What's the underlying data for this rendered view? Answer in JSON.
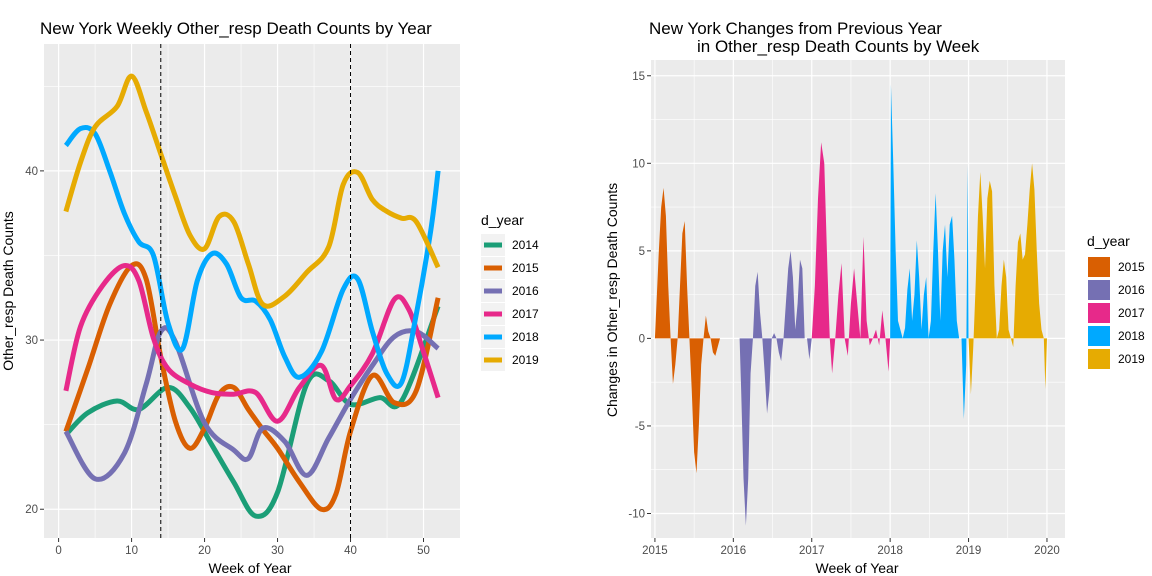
{
  "colors": {
    "2014": "#1B9E77",
    "2015": "#D95F02",
    "2016": "#7570B3",
    "2017": "#E7298A",
    "2018": "#00A9FF",
    "2019": "#E6AB02"
  },
  "chart_data": [
    {
      "type": "line",
      "title": "New York Weekly Other_resp Death Counts by Year",
      "xlabel": "Week of Year",
      "ylabel": "Other_resp Death Counts",
      "xlim": [
        -2,
        55
      ],
      "ylim": [
        18.3,
        47.5
      ],
      "x_ticks": [
        0,
        10,
        20,
        30,
        40,
        50
      ],
      "y_ticks": [
        20,
        30,
        40
      ],
      "vlines": [
        14,
        40
      ],
      "legend": {
        "title": "d_year",
        "position": "right",
        "entries": [
          "2014",
          "2015",
          "2016",
          "2017",
          "2018",
          "2019"
        ]
      },
      "grid": true,
      "series": [
        {
          "name": "2014",
          "x": [
            1,
            4,
            8,
            11,
            15,
            18,
            21,
            24,
            27,
            30,
            34,
            37,
            40,
            44,
            47,
            52
          ],
          "values": [
            24.4,
            25.7,
            26.4,
            25.9,
            27.2,
            26.0,
            23.8,
            21.6,
            19.6,
            21.0,
            27.4,
            27.6,
            26.2,
            26.6,
            26.4,
            32.0
          ]
        },
        {
          "name": "2015",
          "x": [
            1,
            4,
            7,
            10,
            12,
            14,
            16,
            18,
            20,
            22,
            24,
            26,
            28,
            30,
            33,
            36,
            38,
            40,
            43,
            46,
            49,
            52
          ],
          "values": [
            24.6,
            28.3,
            32.1,
            34.4,
            33.6,
            29.0,
            25.2,
            23.6,
            24.8,
            26.8,
            27.2,
            25.9,
            24.7,
            23.6,
            21.6,
            20.0,
            20.9,
            24.6,
            27.9,
            26.3,
            27.0,
            32.5
          ]
        },
        {
          "name": "2016",
          "x": [
            1,
            5,
            9,
            12,
            14,
            16,
            20,
            24,
            26,
            28,
            31,
            34,
            37,
            40,
            43,
            46,
            49,
            52
          ],
          "values": [
            24.6,
            21.8,
            23.3,
            27.4,
            30.5,
            29.9,
            25.1,
            23.5,
            23.0,
            24.8,
            24.0,
            22.0,
            24.2,
            26.5,
            28.5,
            30.2,
            30.5,
            29.5
          ]
        },
        {
          "name": "2017",
          "x": [
            1,
            3,
            6,
            9,
            11,
            13,
            15,
            18,
            21,
            24,
            27,
            30,
            33,
            36,
            38,
            40,
            43,
            46,
            48,
            50,
            52
          ],
          "values": [
            27.0,
            30.8,
            33.2,
            34.4,
            33.5,
            30.1,
            28.3,
            27.4,
            26.9,
            26.8,
            26.9,
            25.2,
            27.2,
            28.5,
            26.5,
            27.3,
            29.2,
            32.4,
            31.8,
            29.3,
            26.6
          ]
        },
        {
          "name": "2018",
          "x": [
            1,
            3,
            5,
            7,
            9,
            11,
            13,
            15,
            17,
            19,
            21,
            23,
            25,
            27,
            29,
            31,
            33,
            36,
            39,
            41,
            43,
            45,
            47,
            49,
            51,
            52
          ],
          "values": [
            41.5,
            42.5,
            42.2,
            40.0,
            37.5,
            35.8,
            35.0,
            31.0,
            29.5,
            33.5,
            35.1,
            34.5,
            32.5,
            32.3,
            31.2,
            29.0,
            27.8,
            29.3,
            33.0,
            33.6,
            30.5,
            28.0,
            27.5,
            31.5,
            36.5,
            40.0
          ]
        },
        {
          "name": "2019",
          "x": [
            1,
            3,
            5,
            8,
            10,
            12,
            14,
            16,
            18,
            20,
            22,
            24,
            26,
            28,
            31,
            34,
            37,
            39,
            41,
            43,
            45,
            47,
            49,
            52
          ],
          "values": [
            37.6,
            40.5,
            42.6,
            43.8,
            45.6,
            43.5,
            41.0,
            38.5,
            36.2,
            35.4,
            37.3,
            37.0,
            34.5,
            32.1,
            32.6,
            34.0,
            35.5,
            39.2,
            39.9,
            38.3,
            37.6,
            37.2,
            37.0,
            34.3
          ]
        }
      ]
    },
    {
      "type": "area",
      "title": "New York Changes from Previous Year",
      "subtitle": "in Other_resp Death Counts by Week",
      "xlabel": "Week of Year",
      "ylabel": "Changes in Other_resp Death Counts",
      "xlim": [
        2014.95,
        2020.23
      ],
      "ylim": [
        -11.4,
        15.9
      ],
      "x_ticks": [
        2015,
        2016,
        2017,
        2018,
        2019,
        2020
      ],
      "y_ticks": [
        -10,
        -5,
        0,
        5,
        10,
        15
      ],
      "legend": {
        "title": "d_year",
        "position": "right",
        "entries": [
          "2015",
          "2016",
          "2017",
          "2018",
          "2019"
        ]
      },
      "grid": true,
      "series": [
        {
          "name": "2015",
          "x": [
            2015.0,
            2015.02,
            2015.05,
            2015.08,
            2015.11,
            2015.14,
            2015.17,
            2015.2,
            2015.23,
            2015.26,
            2015.29,
            2015.32,
            2015.35,
            2015.38,
            2015.41,
            2015.44,
            2015.47,
            2015.5,
            2015.53,
            2015.56,
            2015.59,
            2015.62,
            2015.65,
            2015.68,
            2015.71,
            2015.74,
            2015.77,
            2015.8,
            2015.83,
            2015.86,
            2015.89,
            2015.92,
            2015.95,
            2016.0
          ],
          "values": [
            0.0,
            2.0,
            5.0,
            7.5,
            8.6,
            7.0,
            3.0,
            0.0,
            -2.6,
            -1.5,
            0.0,
            3.0,
            6.0,
            6.7,
            3.0,
            0.0,
            -3.0,
            -6.5,
            -7.7,
            -5.0,
            -1.5,
            0.0,
            1.3,
            0.4,
            0.0,
            -0.8,
            -1.0,
            -0.5,
            0.0,
            0.0,
            0.0,
            0.0,
            0.0,
            0.0
          ]
        },
        {
          "name": "2016",
          "x": [
            2016.0,
            2016.04,
            2016.08,
            2016.1,
            2016.13,
            2016.16,
            2016.19,
            2016.22,
            2016.25,
            2016.28,
            2016.31,
            2016.34,
            2016.37,
            2016.4,
            2016.43,
            2016.46,
            2016.49,
            2016.52,
            2016.55,
            2016.58,
            2016.61,
            2016.64,
            2016.67,
            2016.7,
            2016.73,
            2016.76,
            2016.79,
            2016.82,
            2016.85,
            2016.88,
            2016.91,
            2016.94,
            2016.97,
            2017.0
          ],
          "values": [
            0.0,
            0.0,
            0.0,
            -3.0,
            -8.0,
            -10.7,
            -8.0,
            -2.0,
            0.0,
            3.0,
            3.8,
            1.5,
            0.0,
            -2.0,
            -4.3,
            -3.0,
            0.0,
            0.3,
            0.0,
            -0.8,
            -1.3,
            0.0,
            2.0,
            4.0,
            5.0,
            3.5,
            0.5,
            2.0,
            4.5,
            4.0,
            0.0,
            0.0,
            -1.2,
            0.0
          ]
        },
        {
          "name": "2017",
          "x": [
            2017.0,
            2017.04,
            2017.08,
            2017.12,
            2017.16,
            2017.2,
            2017.23,
            2017.26,
            2017.3,
            2017.34,
            2017.38,
            2017.42,
            2017.46,
            2017.5,
            2017.54,
            2017.58,
            2017.62,
            2017.66,
            2017.7,
            2017.74,
            2017.78,
            2017.82,
            2017.86,
            2017.9,
            2017.94,
            2017.98,
            2018.0
          ],
          "values": [
            0.0,
            3.0,
            8.0,
            11.2,
            10.0,
            4.0,
            0.0,
            -2.0,
            0.0,
            2.5,
            4.3,
            0.0,
            -1.0,
            2.0,
            4.0,
            2.0,
            0.0,
            5.8,
            1.0,
            -0.4,
            0.0,
            0.5,
            -0.4,
            1.6,
            0.0,
            -1.9,
            0.0
          ]
        },
        {
          "name": "2018",
          "x": [
            2018.0,
            2018.01,
            2018.04,
            2018.07,
            2018.1,
            2018.13,
            2018.16,
            2018.19,
            2018.22,
            2018.25,
            2018.28,
            2018.31,
            2018.34,
            2018.37,
            2018.4,
            2018.43,
            2018.46,
            2018.49,
            2018.52,
            2018.55,
            2018.58,
            2018.61,
            2018.64,
            2018.67,
            2018.7,
            2018.73,
            2018.76,
            2018.79,
            2018.82,
            2018.85,
            2018.88,
            2018.91,
            2018.94,
            2018.97,
            2018.99,
            2019.0
          ],
          "values": [
            0.0,
            14.5,
            10.0,
            5.0,
            1.0,
            0.5,
            0.0,
            0.6,
            2.8,
            4.0,
            1.0,
            2.5,
            5.6,
            3.5,
            0.5,
            2.5,
            3.5,
            0.0,
            1.0,
            5.0,
            8.3,
            5.0,
            1.0,
            5.0,
            6.5,
            3.5,
            6.5,
            7.0,
            4.5,
            1.0,
            0.0,
            0.0,
            -4.6,
            -1.5,
            9.9,
            0.0
          ]
        },
        {
          "name": "2019",
          "x": [
            2019.0,
            2019.03,
            2019.06,
            2019.09,
            2019.12,
            2019.15,
            2019.18,
            2019.21,
            2019.24,
            2019.27,
            2019.3,
            2019.33,
            2019.36,
            2019.39,
            2019.42,
            2019.45,
            2019.48,
            2019.51,
            2019.54,
            2019.57,
            2019.6,
            2019.63,
            2019.66,
            2019.69,
            2019.72,
            2019.75,
            2019.78,
            2019.81,
            2019.84,
            2019.87,
            2019.9,
            2019.93,
            2019.96,
            2019.98,
            2020.0
          ],
          "values": [
            0.0,
            -3.2,
            -0.5,
            3.0,
            7.0,
            9.5,
            7.0,
            4.0,
            8.0,
            9.0,
            8.4,
            3.0,
            0.0,
            0.5,
            3.0,
            4.5,
            3.5,
            0.5,
            0.0,
            -0.5,
            3.0,
            5.5,
            6.0,
            4.5,
            4.8,
            6.5,
            8.5,
            10.0,
            8.5,
            5.0,
            2.0,
            0.5,
            0.0,
            -2.9,
            0.0
          ]
        }
      ]
    }
  ]
}
